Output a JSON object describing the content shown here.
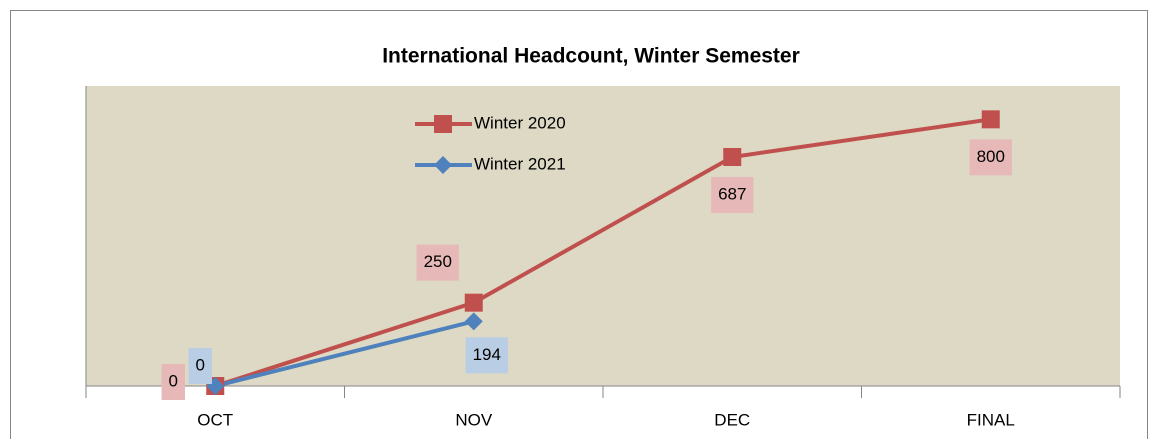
{
  "chart_data": {
    "type": "line",
    "title": "International Headcount, Winter Semester",
    "categories": [
      "OCT",
      "NOV",
      "DEC",
      "FINAL"
    ],
    "series": [
      {
        "name": "Winter 2020",
        "color": "#c0504d",
        "marker": "square",
        "label_color": "#e6b9b8",
        "values": [
          0,
          250,
          687,
          800
        ]
      },
      {
        "name": "Winter 2021",
        "color": "#4f81bd",
        "marker": "diamond",
        "label_color": "#b9cde5",
        "values": [
          0,
          194,
          null,
          null
        ]
      }
    ],
    "ylim": [
      0,
      900
    ],
    "legend": "top",
    "plot_background": "#ddd9c4",
    "grid": false
  }
}
